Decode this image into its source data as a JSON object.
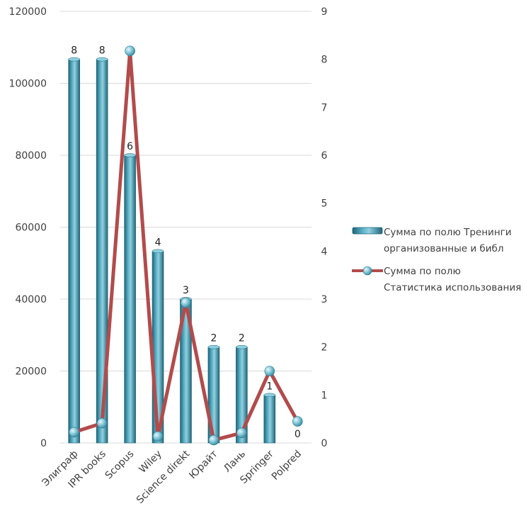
{
  "chart_data": {
    "type": "bar",
    "categories": [
      "Элиграф",
      "IPR books",
      "Scopus",
      "Wiley",
      "Science direkt",
      "Юрайт",
      "Лань",
      "Springer",
      "Polpred"
    ],
    "series": [
      {
        "name": "Сумма по полю Тренинги организованные  и библ",
        "type": "bar",
        "axis": "right",
        "values": [
          8,
          8,
          6,
          4,
          3,
          2,
          2,
          1,
          0
        ],
        "data_labels": [
          "8",
          "8",
          "6",
          "4",
          "3",
          "2",
          "2",
          "1",
          "0"
        ]
      },
      {
        "name": "Сумма по полю Статистика использования",
        "type": "line",
        "axis": "left",
        "values": [
          3000,
          5500,
          109000,
          1800,
          39000,
          800,
          2800,
          20000,
          6000
        ]
      }
    ],
    "left_axis": {
      "min": 0,
      "max": 120000,
      "ticks": [
        "0",
        "20000",
        "40000",
        "60000",
        "80000",
        "100000",
        "120000"
      ]
    },
    "right_axis": {
      "min": 0,
      "max": 9,
      "ticks": [
        "0",
        "1",
        "2",
        "3",
        "4",
        "5",
        "6",
        "7",
        "8",
        "9"
      ]
    },
    "grid": true,
    "legend_position": "right",
    "legend": {
      "bar_lines": [
        "Сумма по полю Тренинги",
        "организованные  и библ"
      ],
      "line_lines": [
        "Сумма по полю",
        "Статистика использования"
      ]
    },
    "colors": {
      "bar": "#3a8fa6",
      "bar_dark": "#1f6578",
      "bar_light": "#8fd0e0",
      "line": "#b34b4b",
      "marker": "#7fc3d6",
      "grid": "#d9d9d9"
    }
  }
}
